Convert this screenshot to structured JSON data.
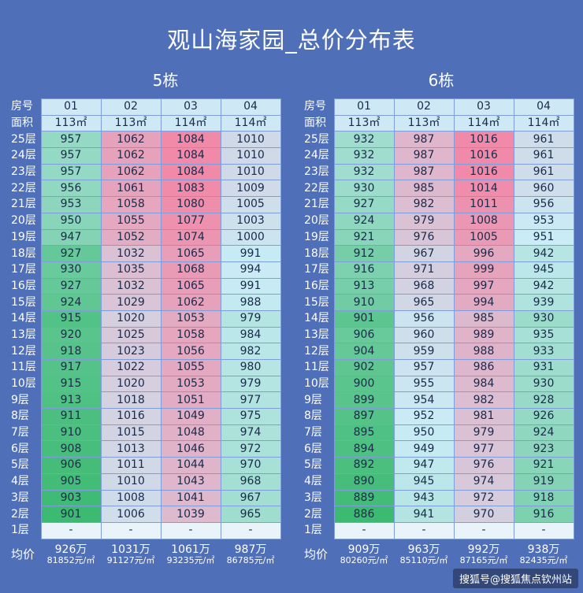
{
  "title": "观山海家园_总价分布表",
  "buildings": [
    {
      "label": "5栋",
      "head_room": "房号",
      "head_area": "面积",
      "rooms": [
        "01",
        "02",
        "03",
        "04"
      ],
      "areas": [
        "113㎡",
        "113㎡",
        "114㎡",
        "114㎡"
      ],
      "floors": [
        {
          "floor": "25层",
          "values": [
            "957",
            "1062",
            "1084",
            "1010"
          ]
        },
        {
          "floor": "24层",
          "values": [
            "957",
            "1062",
            "1084",
            "1010"
          ]
        },
        {
          "floor": "23层",
          "values": [
            "957",
            "1062",
            "1084",
            "1010"
          ]
        },
        {
          "floor": "22层",
          "values": [
            "956",
            "1061",
            "1083",
            "1009"
          ]
        },
        {
          "floor": "21层",
          "values": [
            "953",
            "1058",
            "1080",
            "1005"
          ]
        },
        {
          "floor": "20层",
          "values": [
            "950",
            "1055",
            "1077",
            "1003"
          ]
        },
        {
          "floor": "19层",
          "values": [
            "947",
            "1052",
            "1074",
            "1000"
          ]
        },
        {
          "floor": "18层",
          "values": [
            "927",
            "1032",
            "1065",
            "991"
          ]
        },
        {
          "floor": "17层",
          "values": [
            "930",
            "1035",
            "1068",
            "994"
          ]
        },
        {
          "floor": "16层",
          "values": [
            "927",
            "1032",
            "1065",
            "991"
          ]
        },
        {
          "floor": "15层",
          "values": [
            "924",
            "1029",
            "1062",
            "988"
          ]
        },
        {
          "floor": "14层",
          "values": [
            "915",
            "1020",
            "1053",
            "979"
          ]
        },
        {
          "floor": "13层",
          "values": [
            "920",
            "1025",
            "1058",
            "984"
          ]
        },
        {
          "floor": "12层",
          "values": [
            "918",
            "1023",
            "1056",
            "982"
          ]
        },
        {
          "floor": "11层",
          "values": [
            "917",
            "1022",
            "1055",
            "980"
          ]
        },
        {
          "floor": "10层",
          "values": [
            "915",
            "1020",
            "1053",
            "979"
          ]
        },
        {
          "floor": "9层",
          "values": [
            "913",
            "1018",
            "1051",
            "977"
          ]
        },
        {
          "floor": "8层",
          "values": [
            "911",
            "1016",
            "1049",
            "975"
          ]
        },
        {
          "floor": "7层",
          "values": [
            "910",
            "1015",
            "1048",
            "974"
          ]
        },
        {
          "floor": "6层",
          "values": [
            "908",
            "1013",
            "1046",
            "972"
          ]
        },
        {
          "floor": "5层",
          "values": [
            "906",
            "1011",
            "1044",
            "970"
          ]
        },
        {
          "floor": "4层",
          "values": [
            "905",
            "1010",
            "1043",
            "968"
          ]
        },
        {
          "floor": "3层",
          "values": [
            "903",
            "1008",
            "1041",
            "967"
          ]
        },
        {
          "floor": "2层",
          "values": [
            "901",
            "1006",
            "1039",
            "965"
          ]
        },
        {
          "floor": "1层",
          "values": [
            "-",
            "-",
            "-",
            "-"
          ]
        }
      ],
      "avg_label": "均价",
      "avg_totals": [
        "926万",
        "1031万",
        "1061万",
        "987万"
      ],
      "avg_units": [
        "81852元/㎡",
        "91127元/㎡",
        "93235元/㎡",
        "86785元/㎡"
      ]
    },
    {
      "label": "6栋",
      "head_room": "房号",
      "head_area": "面积",
      "rooms": [
        "01",
        "02",
        "03",
        "04"
      ],
      "areas": [
        "113㎡",
        "113㎡",
        "114㎡",
        "114㎡"
      ],
      "floors": [
        {
          "floor": "25层",
          "values": [
            "932",
            "987",
            "1016",
            "961"
          ]
        },
        {
          "floor": "24层",
          "values": [
            "932",
            "987",
            "1016",
            "961"
          ]
        },
        {
          "floor": "23层",
          "values": [
            "932",
            "987",
            "1016",
            "961"
          ]
        },
        {
          "floor": "22层",
          "values": [
            "930",
            "985",
            "1014",
            "960"
          ]
        },
        {
          "floor": "21层",
          "values": [
            "927",
            "982",
            "1011",
            "956"
          ]
        },
        {
          "floor": "20层",
          "values": [
            "924",
            "979",
            "1008",
            "953"
          ]
        },
        {
          "floor": "19层",
          "values": [
            "921",
            "976",
            "1005",
            "951"
          ]
        },
        {
          "floor": "18层",
          "values": [
            "912",
            "967",
            "996",
            "942"
          ]
        },
        {
          "floor": "17层",
          "values": [
            "916",
            "971",
            "999",
            "945"
          ]
        },
        {
          "floor": "16层",
          "values": [
            "913",
            "968",
            "997",
            "942"
          ]
        },
        {
          "floor": "15层",
          "values": [
            "910",
            "965",
            "994",
            "939"
          ]
        },
        {
          "floor": "14层",
          "values": [
            "901",
            "956",
            "985",
            "930"
          ]
        },
        {
          "floor": "13层",
          "values": [
            "906",
            "960",
            "989",
            "935"
          ]
        },
        {
          "floor": "12层",
          "values": [
            "904",
            "959",
            "988",
            "933"
          ]
        },
        {
          "floor": "11层",
          "values": [
            "902",
            "957",
            "986",
            "931"
          ]
        },
        {
          "floor": "10层",
          "values": [
            "900",
            "955",
            "984",
            "930"
          ]
        },
        {
          "floor": "9层",
          "values": [
            "899",
            "954",
            "982",
            "928"
          ]
        },
        {
          "floor": "8层",
          "values": [
            "897",
            "952",
            "981",
            "926"
          ]
        },
        {
          "floor": "7层",
          "values": [
            "895",
            "950",
            "979",
            "924"
          ]
        },
        {
          "floor": "6层",
          "values": [
            "894",
            "949",
            "977",
            "923"
          ]
        },
        {
          "floor": "5层",
          "values": [
            "892",
            "947",
            "976",
            "921"
          ]
        },
        {
          "floor": "4层",
          "values": [
            "890",
            "945",
            "974",
            "919"
          ]
        },
        {
          "floor": "3层",
          "values": [
            "889",
            "943",
            "972",
            "918"
          ]
        },
        {
          "floor": "2层",
          "values": [
            "886",
            "941",
            "970",
            "916"
          ]
        },
        {
          "floor": "1层",
          "values": [
            "-",
            "-",
            "-",
            "-"
          ]
        }
      ],
      "avg_label": "均价",
      "avg_totals": [
        "909万",
        "963万",
        "992万",
        "938万"
      ],
      "avg_units": [
        "80260元/㎡",
        "85110元/㎡",
        "87165元/㎡",
        "82435元/㎡"
      ]
    }
  ],
  "watermark": "搜狐号@搜狐焦点钦州站",
  "colors": {
    "background": "#4f6fb8",
    "low": "#3dba72",
    "mid": "#c9ecf6",
    "high": "#f08aa8"
  }
}
